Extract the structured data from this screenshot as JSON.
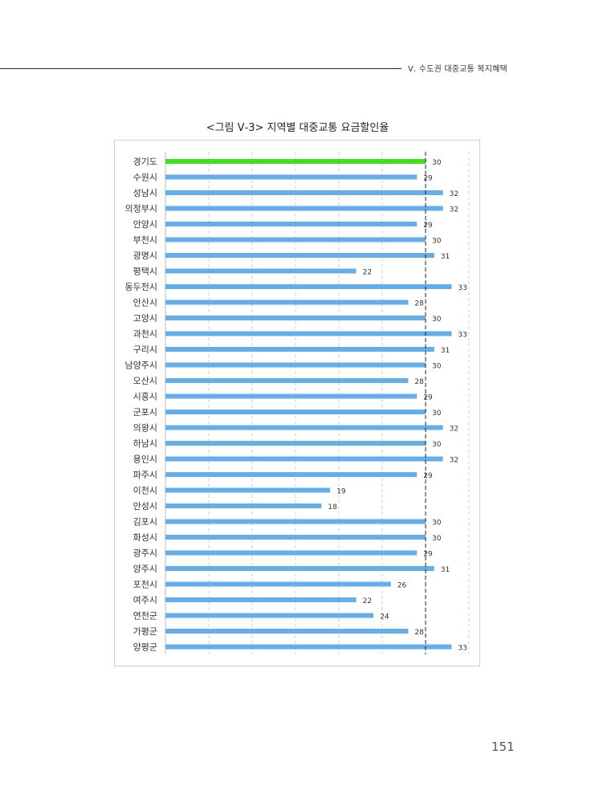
{
  "header": {
    "section_title": "Ⅴ. 수도권 대중교통 복지혜택"
  },
  "figure": {
    "title": "<그림 Ⅴ-3> 지역별 대중교통 요금할인율"
  },
  "page": {
    "number": "151"
  },
  "colors": {
    "bar": "#64aeea",
    "highlight": "#40e020",
    "grid": "#cfcfcf",
    "reference_line": "#222222"
  },
  "chart_data": {
    "type": "bar",
    "orientation": "horizontal",
    "title": "",
    "xlabel": "",
    "ylabel": "",
    "xlim": [
      0,
      35
    ],
    "grid": true,
    "reference_value": 30,
    "highlight_category": "경기도",
    "categories": [
      "경기도",
      "수원시",
      "성남시",
      "의정부시",
      "안양시",
      "부천시",
      "광명시",
      "평택시",
      "동두천시",
      "안산시",
      "고양시",
      "과천시",
      "구리시",
      "남양주시",
      "오산시",
      "시흥시",
      "군포시",
      "의왕시",
      "하남시",
      "용인시",
      "파주시",
      "이천시",
      "안성시",
      "김포시",
      "화성시",
      "광주시",
      "양주시",
      "포천시",
      "여주시",
      "연천군",
      "가평군",
      "양평군"
    ],
    "values": [
      30,
      29,
      32,
      32,
      29,
      30,
      31,
      22,
      33,
      28,
      30,
      33,
      31,
      30,
      28,
      29,
      30,
      32,
      30,
      32,
      29,
      19,
      18,
      30,
      30,
      29,
      31,
      26,
      22,
      24,
      28,
      33
    ]
  }
}
